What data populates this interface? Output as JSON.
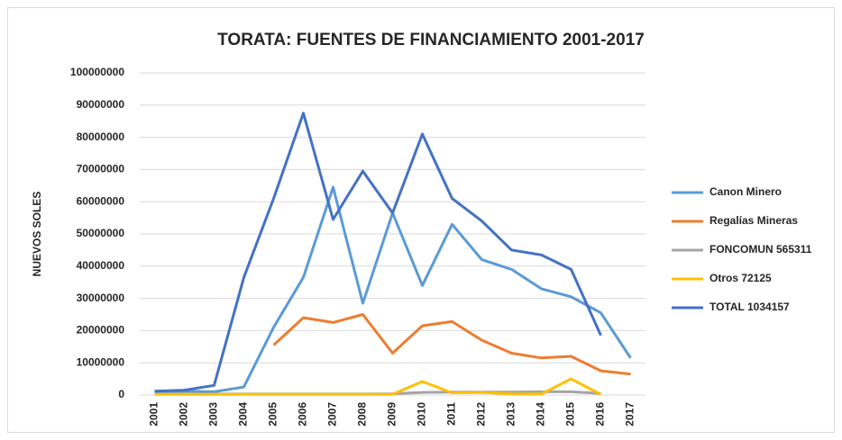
{
  "chart_data": {
    "type": "line",
    "title": "TORATA: FUENTES DE FINANCIAMIENTO 2001-2017",
    "y_label": "NUEVOS SOLES",
    "categories": [
      "2001",
      "2002",
      "2003",
      "2004",
      "2005",
      "2006",
      "2007",
      "2008",
      "2009",
      "2010",
      "2011",
      "2012",
      "2013",
      "2014",
      "2015",
      "2016",
      "2017"
    ],
    "series": [
      {
        "name": "Canon Minero",
        "color": "#5b9bd5",
        "values": [
          1000000,
          1200000,
          1000000,
          2500000,
          21000000,
          36500000,
          64500000,
          28500000,
          56500000,
          34000000,
          53000000,
          42000000,
          39000000,
          33000000,
          30500000,
          25500000,
          11500000
        ]
      },
      {
        "name": "Regalías Mineras",
        "color": "#ed7d31",
        "values": [
          null,
          null,
          null,
          null,
          15500000,
          24000000,
          22500000,
          25000000,
          13000000,
          21500000,
          22800000,
          17000000,
          13000000,
          11500000,
          12000000,
          7500000,
          6500000
        ]
      },
      {
        "name": "FONCOMUN 565311",
        "color": "#a5a5a5",
        "values": [
          300000,
          300000,
          300000,
          300000,
          300000,
          300000,
          300000,
          300000,
          400000,
          800000,
          900000,
          900000,
          900000,
          1000000,
          1000000,
          500000,
          null
        ]
      },
      {
        "name": "Otros 72125",
        "color": "#ffc000",
        "values": [
          200000,
          200000,
          200000,
          200000,
          200000,
          200000,
          200000,
          200000,
          200000,
          4200000,
          700000,
          800000,
          300000,
          300000,
          5000000,
          200000,
          null
        ]
      },
      {
        "name": "TOTAL 1034157",
        "color": "#4472c4",
        "values": [
          1200000,
          1500000,
          3000000,
          36500000,
          61000000,
          87500000,
          54500000,
          69500000,
          56500000,
          81000000,
          61000000,
          54000000,
          45000000,
          43500000,
          39000000,
          18500000,
          null
        ]
      }
    ],
    "ylim": [
      0,
      100000000
    ],
    "yticks": [
      0,
      10000000,
      20000000,
      30000000,
      40000000,
      50000000,
      60000000,
      70000000,
      80000000,
      90000000,
      100000000
    ],
    "grid": true,
    "legend": "right"
  }
}
